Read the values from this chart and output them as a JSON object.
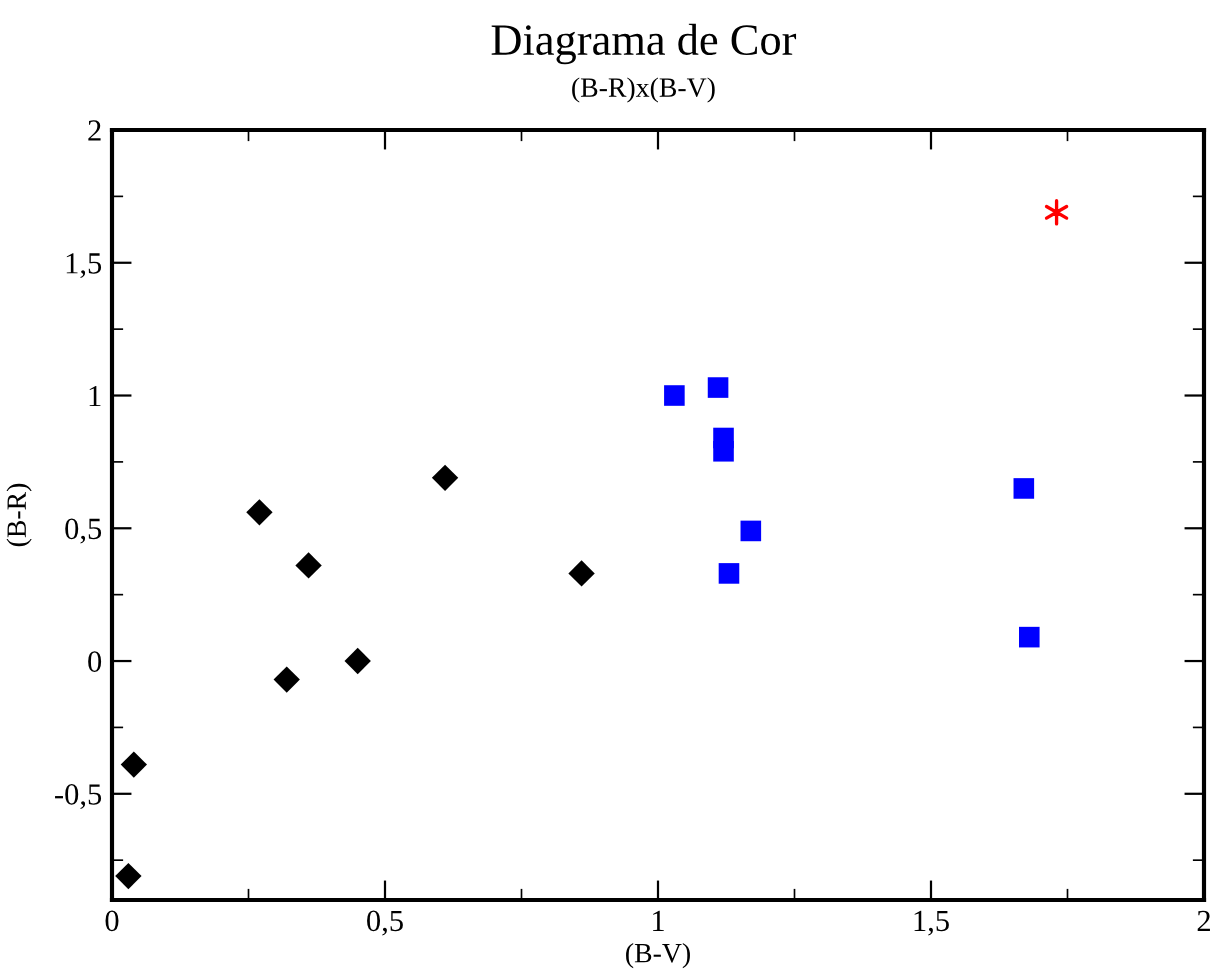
{
  "chart_data": {
    "type": "scatter",
    "title": "Diagrama de Cor",
    "subtitle": "(B-R)x(B-V)",
    "xlabel": "(B-V)",
    "ylabel": "(B-R)",
    "xlim": [
      0,
      2
    ],
    "ylim": [
      -0.9,
      2
    ],
    "xticks": [
      0,
      {
        "value": 0.5,
        "label": "0,5"
      },
      1,
      {
        "value": 1.5,
        "label": "1,5"
      },
      2
    ],
    "yticks": [
      {
        "value": -0.5,
        "label": "-0,5"
      },
      0,
      {
        "value": 0.5,
        "label": "0,5"
      },
      1,
      {
        "value": 1.5,
        "label": "1,5"
      },
      2
    ],
    "grid": false,
    "legend": false,
    "series": [
      {
        "color": "#000000",
        "marker": "diamond",
        "x": [
          0.03,
          0.04,
          0.27,
          0.36,
          0.32,
          0.45,
          0.61,
          0.86
        ],
        "values": [
          -0.81,
          -0.39,
          0.56,
          0.36,
          -0.07,
          0,
          0.69,
          0.33
        ]
      },
      {
        "color": "#0000ff",
        "marker": "square",
        "x": [
          1.03,
          1.11,
          1.12,
          1.12,
          1.17,
          1.13,
          1.67,
          1.68
        ],
        "values": [
          1.0,
          1.03,
          0.84,
          0.79,
          0.49,
          0.33,
          0.65,
          0.09
        ]
      },
      {
        "color": "#ff0000",
        "marker": "cross",
        "x": [
          1.73
        ],
        "values": [
          1.69
        ]
      }
    ]
  }
}
